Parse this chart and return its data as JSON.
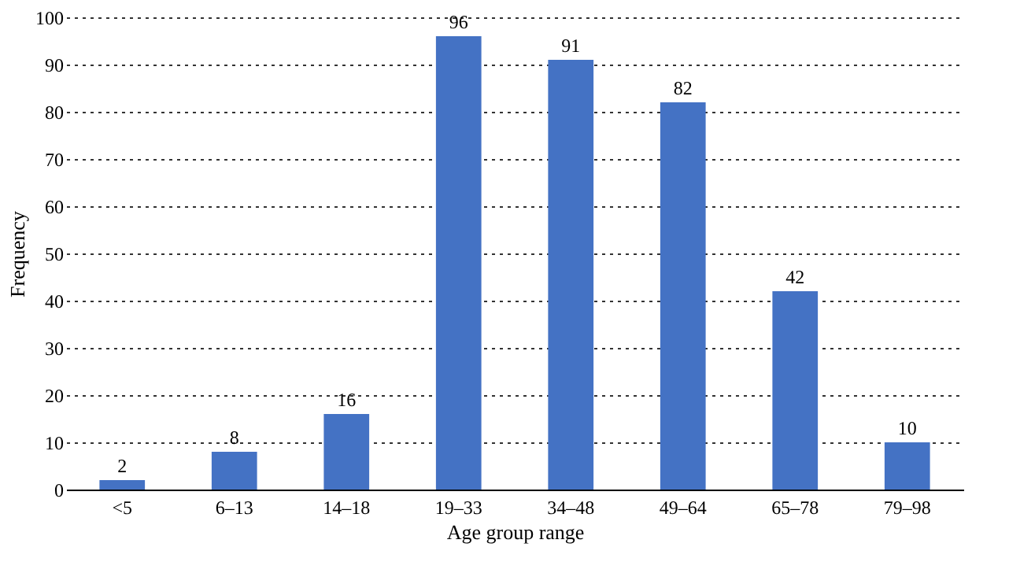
{
  "chart_data": {
    "type": "bar",
    "xlabel": "Age group range",
    "ylabel": "Frequency",
    "categories": [
      "<5",
      "6–13",
      "14–18",
      "19–33",
      "34–48",
      "49–64",
      "65–78",
      "79–98"
    ],
    "values": [
      2,
      8,
      16,
      96,
      91,
      82,
      42,
      10
    ],
    "color": "#4472c4",
    "ylim": [
      0,
      100
    ],
    "yticks": [
      0,
      10,
      20,
      30,
      40,
      50,
      60,
      70,
      80,
      90,
      100
    ],
    "grid": "y",
    "data_labels": true
  }
}
